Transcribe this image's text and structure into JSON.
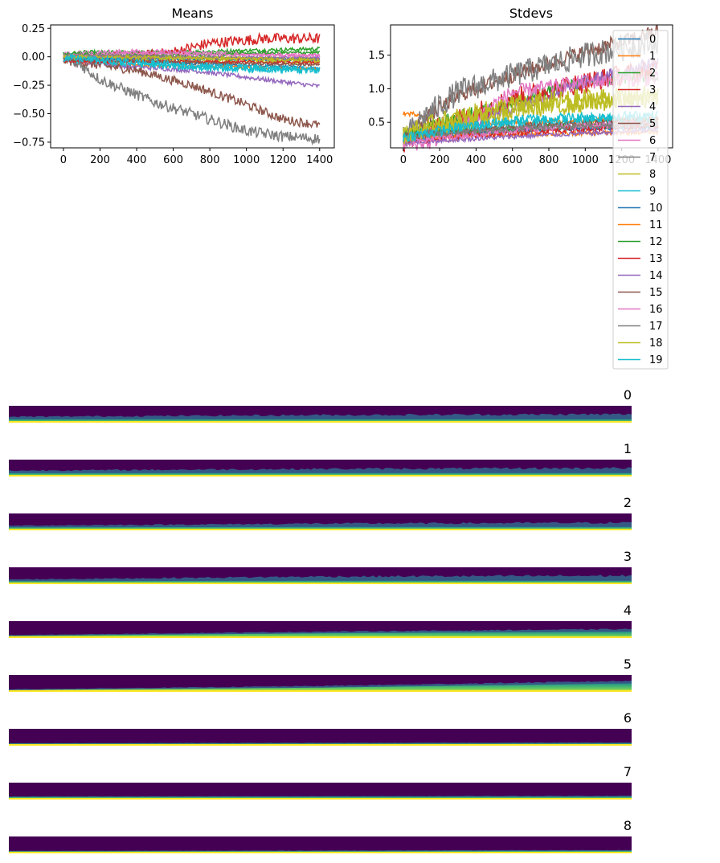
{
  "palette": [
    "#1f77b4",
    "#ff7f0e",
    "#2ca02c",
    "#d62728",
    "#9467bd",
    "#8c564b",
    "#e377c2",
    "#7f7f7f",
    "#bcbd22",
    "#17becf"
  ],
  "heatmap_colors": {
    "dark": "#440154",
    "mid": "#31688e",
    "teal": "#21918c",
    "green": "#5ec962",
    "yellow": "#fde725"
  },
  "chart_data": [
    {
      "type": "line",
      "title": "Means",
      "xlabel": "",
      "ylabel": "",
      "xlim": [
        -70,
        1480
      ],
      "ylim": [
        -0.8,
        0.28
      ],
      "xticks": [
        0,
        200,
        400,
        600,
        800,
        1000,
        1200,
        1400
      ],
      "yticks": [
        -0.75,
        -0.5,
        -0.25,
        0.0,
        0.25
      ],
      "ytick_labels": [
        "−0.75",
        "−0.50",
        "−0.25",
        "0.00",
        "0.25"
      ],
      "grid": false,
      "n_points": 1400,
      "series": [
        {
          "x": [
            0,
            700,
            1400
          ],
          "y": [
            0.0,
            -0.06,
            -0.1
          ],
          "noise": 0.008
        },
        {
          "x": [
            0,
            300,
            700,
            1400
          ],
          "y": [
            -0.02,
            -0.07,
            -0.08,
            -0.11
          ],
          "noise": 0.008
        },
        {
          "x": [
            0,
            100,
            600,
            1400
          ],
          "y": [
            0.02,
            0.04,
            0.04,
            0.07
          ],
          "noise": 0.01
        },
        {
          "x": [
            0,
            400,
            600,
            800,
            1100,
            1400
          ],
          "y": [
            -0.02,
            0.0,
            0.04,
            0.12,
            0.16,
            0.16
          ],
          "noise": 0.03
        },
        {
          "x": [
            0,
            300,
            700,
            1100,
            1400
          ],
          "y": [
            -0.02,
            -0.08,
            -0.12,
            -0.2,
            -0.26
          ],
          "noise": 0.012
        },
        {
          "x": [
            0,
            400,
            700,
            1000,
            1200,
            1400
          ],
          "y": [
            -0.03,
            -0.12,
            -0.25,
            -0.42,
            -0.55,
            -0.6
          ],
          "noise": 0.025
        },
        {
          "x": [
            0,
            400,
            800,
            1400
          ],
          "y": [
            0.02,
            0.05,
            0.03,
            0.01
          ],
          "noise": 0.012
        },
        {
          "x": [
            0,
            100,
            200,
            500,
            800,
            1000,
            1200,
            1400
          ],
          "y": [
            -0.02,
            -0.08,
            -0.2,
            -0.4,
            -0.55,
            -0.65,
            -0.7,
            -0.72
          ],
          "noise": 0.03
        },
        {
          "x": [
            0,
            700,
            1400
          ],
          "y": [
            -0.01,
            -0.03,
            -0.05
          ],
          "noise": 0.012
        },
        {
          "x": [
            0,
            700,
            1400
          ],
          "y": [
            -0.02,
            -0.09,
            -0.12
          ],
          "noise": 0.02
        },
        {
          "x": [
            0,
            700,
            1400
          ],
          "y": [
            -0.01,
            -0.02,
            -0.03
          ],
          "noise": 0.006
        },
        {
          "x": [
            0,
            700,
            1400
          ],
          "y": [
            0.01,
            -0.01,
            -0.02
          ],
          "noise": 0.006
        },
        {
          "x": [
            0,
            500,
            1000,
            1400
          ],
          "y": [
            0.03,
            0.01,
            0.03,
            0.04
          ],
          "noise": 0.008
        },
        {
          "x": [
            0,
            700,
            1400
          ],
          "y": [
            -0.04,
            -0.04,
            -0.05
          ],
          "noise": 0.008
        },
        {
          "x": [
            0,
            700,
            1400
          ],
          "y": [
            0.0,
            0.0,
            -0.01
          ],
          "noise": 0.006
        },
        {
          "x": [
            0,
            700,
            1400
          ],
          "y": [
            -0.02,
            -0.05,
            -0.07
          ],
          "noise": 0.008
        },
        {
          "x": [
            0,
            400,
            1400
          ],
          "y": [
            0.01,
            0.03,
            0.01
          ],
          "noise": 0.008
        },
        {
          "x": [
            0,
            700,
            1400
          ],
          "y": [
            0.02,
            0.0,
            -0.02
          ],
          "noise": 0.006
        },
        {
          "x": [
            0,
            700,
            1400
          ],
          "y": [
            0.0,
            -0.01,
            -0.03
          ],
          "noise": 0.01
        },
        {
          "x": [
            0,
            700,
            1400
          ],
          "y": [
            -0.01,
            -0.08,
            -0.12
          ],
          "noise": 0.02
        }
      ]
    },
    {
      "type": "line",
      "title": "Stdevs",
      "xlabel": "",
      "ylabel": "",
      "xlim": [
        -70,
        1480
      ],
      "ylim": [
        0.12,
        1.95
      ],
      "xticks": [
        0,
        200,
        400,
        600,
        800,
        1000,
        1200,
        1400
      ],
      "yticks": [
        0.5,
        1.0,
        1.5
      ],
      "ytick_labels": [
        "0.5",
        "1.0",
        "1.5"
      ],
      "grid": false,
      "legend_position": "upper right, overflowing below the axes",
      "legend_entries": [
        "0",
        "1",
        "2",
        "3",
        "4",
        "5",
        "6",
        "7",
        "8",
        "9",
        "10",
        "11",
        "12",
        "13",
        "14",
        "15",
        "16",
        "17",
        "18",
        "19"
      ],
      "n_points": 1400,
      "series": [
        {
          "x": [
            0,
            200,
            700,
            1400
          ],
          "y": [
            0.2,
            0.3,
            0.4,
            0.42
          ],
          "noise": 0.02
        },
        {
          "x": [
            0,
            100,
            150,
            600,
            1400
          ],
          "y": [
            0.63,
            0.62,
            0.45,
            0.5,
            0.55
          ],
          "noise": 0.02
        },
        {
          "x": [
            0,
            200,
            600,
            1000,
            1400
          ],
          "y": [
            0.25,
            0.5,
            0.8,
            1.1,
            1.2
          ],
          "noise": 0.06
        },
        {
          "x": [
            0,
            100,
            300,
            600,
            1000,
            1400
          ],
          "y": [
            0.2,
            0.3,
            0.55,
            0.85,
            1.1,
            1.3
          ],
          "noise": 0.1
        },
        {
          "x": [
            0,
            200,
            700,
            1000,
            1400
          ],
          "y": [
            0.22,
            0.35,
            0.8,
            1.1,
            1.4
          ],
          "noise": 0.06
        },
        {
          "x": [
            0,
            100,
            300,
            600,
            1000,
            1400
          ],
          "y": [
            0.25,
            0.5,
            0.9,
            1.2,
            1.55,
            1.85
          ],
          "noise": 0.07
        },
        {
          "x": [
            0,
            150,
            300,
            600,
            1000,
            1400
          ],
          "y": [
            0.18,
            0.2,
            0.4,
            0.95,
            1.1,
            1.15
          ],
          "noise": 0.07
        },
        {
          "x": [
            0,
            100,
            300,
            600,
            1000,
            1400
          ],
          "y": [
            0.25,
            0.55,
            0.95,
            1.2,
            1.5,
            1.7
          ],
          "noise": 0.12
        },
        {
          "x": [
            0,
            200,
            600,
            1000,
            1400
          ],
          "y": [
            0.3,
            0.5,
            0.75,
            0.85,
            0.9
          ],
          "noise": 0.1
        },
        {
          "x": [
            0,
            300,
            700,
            1400
          ],
          "y": [
            0.25,
            0.4,
            0.5,
            0.55
          ],
          "noise": 0.06
        },
        {
          "x": [
            0,
            700,
            1400
          ],
          "y": [
            0.3,
            0.38,
            0.45
          ],
          "noise": 0.02
        },
        {
          "x": [
            0,
            700,
            1400
          ],
          "y": [
            0.28,
            0.32,
            0.36
          ],
          "noise": 0.02
        },
        {
          "x": [
            0,
            700,
            1400
          ],
          "y": [
            0.32,
            0.42,
            0.5
          ],
          "noise": 0.03
        },
        {
          "x": [
            0,
            700,
            1400
          ],
          "y": [
            0.22,
            0.36,
            0.45
          ],
          "noise": 0.03
        },
        {
          "x": [
            0,
            700,
            1400
          ],
          "y": [
            0.2,
            0.3,
            0.38
          ],
          "noise": 0.02
        },
        {
          "x": [
            0,
            700,
            1400
          ],
          "y": [
            0.3,
            0.45,
            0.55
          ],
          "noise": 0.03
        },
        {
          "x": [
            0,
            700,
            1400
          ],
          "y": [
            0.22,
            0.4,
            0.5
          ],
          "noise": 0.03
        },
        {
          "x": [
            0,
            700,
            1400
          ],
          "y": [
            0.3,
            0.42,
            0.48
          ],
          "noise": 0.03
        },
        {
          "x": [
            0,
            200,
            700,
            1400
          ],
          "y": [
            0.3,
            0.45,
            0.7,
            0.85
          ],
          "noise": 0.08
        },
        {
          "x": [
            0,
            300,
            700,
            1400
          ],
          "y": [
            0.28,
            0.42,
            0.55,
            0.6
          ],
          "noise": 0.05
        }
      ]
    },
    {
      "type": "heatmap",
      "panel_titles": [
        "0",
        "1",
        "2",
        "3",
        "4",
        "5",
        "6",
        "7",
        "8"
      ],
      "x_range": [
        0,
        1400
      ],
      "description_data": [
        {
          "green_frac": [
            0.2,
            0.2,
            0.2
          ],
          "mid_frac": [
            0.15,
            0.25,
            0.3
          ]
        },
        {
          "green_frac": [
            0.2,
            0.2,
            0.2
          ],
          "mid_frac": [
            0.15,
            0.25,
            0.3
          ]
        },
        {
          "green_frac": [
            0.18,
            0.2,
            0.2
          ],
          "mid_frac": [
            0.1,
            0.2,
            0.25
          ]
        },
        {
          "green_frac": [
            0.18,
            0.2,
            0.2
          ],
          "mid_frac": [
            0.1,
            0.25,
            0.3
          ]
        },
        {
          "green_frac": [
            0.12,
            0.28,
            0.38
          ],
          "mid_frac": [
            0.05,
            0.1,
            0.15
          ]
        },
        {
          "green_frac": [
            0.1,
            0.25,
            0.5
          ],
          "mid_frac": [
            0.05,
            0.1,
            0.15
          ]
        },
        {
          "green_frac": [
            0.12,
            0.13,
            0.14
          ],
          "mid_frac": [
            0.03,
            0.04,
            0.05
          ]
        },
        {
          "green_frac": [
            0.15,
            0.16,
            0.17
          ],
          "mid_frac": [
            0.03,
            0.04,
            0.05
          ]
        },
        {
          "green_frac": [
            0.12,
            0.13,
            0.15
          ],
          "mid_frac": [
            0.03,
            0.04,
            0.05
          ]
        }
      ]
    }
  ]
}
